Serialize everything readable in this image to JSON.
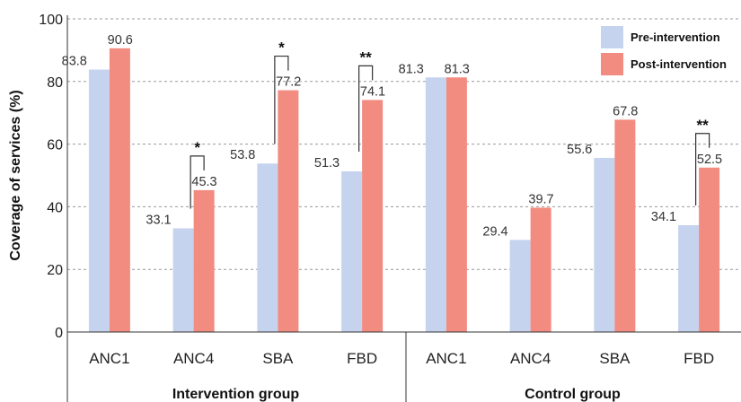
{
  "chart_data": {
    "type": "bar",
    "ylabel": "Coverage of services (%)",
    "ylim": [
      0,
      100
    ],
    "yticks": [
      0,
      20,
      40,
      60,
      80,
      100
    ],
    "grid": "dashed horizontal",
    "legend_position": "top-right",
    "groups": [
      {
        "name": "Intervention group",
        "categories": [
          "ANC1",
          "ANC4",
          "SBA",
          "FBD"
        ],
        "significance": [
          "",
          "*",
          "*",
          "**"
        ]
      },
      {
        "name": "Control group",
        "categories": [
          "ANC1",
          "ANC4",
          "SBA",
          "FBD"
        ],
        "significance": [
          "",
          "",
          "",
          "**"
        ]
      }
    ],
    "series": [
      {
        "name": "Pre-intervention",
        "color": "#c5d3ee",
        "values": [
          83.8,
          33.1,
          53.8,
          51.3,
          81.3,
          29.4,
          55.6,
          34.1
        ],
        "labels": [
          "83.8",
          "33.1",
          "53.8",
          "51.3",
          "81.3",
          "29.4",
          "55.6",
          "34.1"
        ]
      },
      {
        "name": "Post-intervention",
        "color": "#f28b80",
        "values": [
          90.6,
          45.3,
          77.2,
          74.1,
          81.3,
          39.7,
          67.8,
          52.5
        ],
        "labels": [
          "90.6",
          "45.3",
          "77.2",
          "74.1",
          "81.3",
          "39.7",
          "67.8",
          "52.5"
        ]
      }
    ]
  }
}
